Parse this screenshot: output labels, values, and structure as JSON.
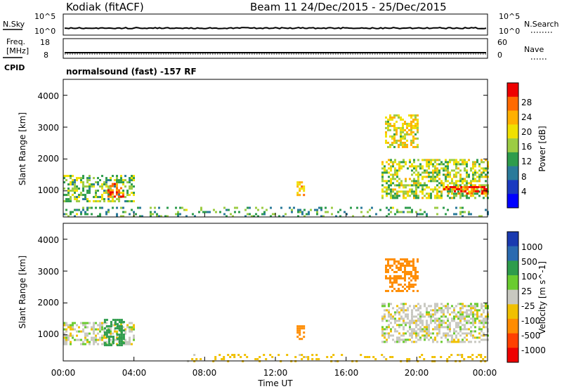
{
  "header": {
    "station": "Kodiak (fitACF)",
    "beam_period": "Beam 11  24/Dec/2015 - 25/Dec/2015"
  },
  "params": {
    "nsky_label": "N.Sky",
    "nsky_ticks": [
      "10^5",
      "10^0"
    ],
    "nsearch_label": "N.Search",
    "nsearch_ticks": [
      "10^5",
      "10^0"
    ],
    "freq_label_1": "Freq.",
    "freq_label_2": "[MHz]",
    "freq_ticks": [
      "18",
      "8"
    ],
    "nave_label": "Nave",
    "nave_ticks": [
      "60",
      "0"
    ],
    "cpid_label": "CPID",
    "cpid_text": "normalsound (fast) -157 RF"
  },
  "axes": {
    "ylabel": "Slant Range [km]",
    "yticks": [
      "4000",
      "3000",
      "2000",
      "1000"
    ],
    "xticks": [
      "00:00",
      "04:00",
      "08:00",
      "12:00",
      "16:00",
      "20:00",
      "00:00"
    ],
    "xlabel": "Time UT"
  },
  "power_scale": {
    "label": "Power [dB]",
    "ticks": [
      "28",
      "24",
      "20",
      "16",
      "12",
      "8",
      "4"
    ],
    "colors": [
      "#ee0000",
      "#ff6a00",
      "#ffb000",
      "#f0e000",
      "#9ccc44",
      "#2e9c4c",
      "#2a7a9a",
      "#1a3ac0",
      "#0000ff"
    ]
  },
  "velocity_scale": {
    "label": "Velocity [m s^-1]",
    "ticks": [
      "1000",
      "500",
      "100",
      "25",
      "-25",
      "-100",
      "-500",
      "-1000"
    ],
    "colors": [
      "#1a3ab0",
      "#2a6ab0",
      "#2e9c4c",
      "#6acc30",
      "#c8c8c0",
      "#f0c000",
      "#ff8c00",
      "#ff4000",
      "#ee0000"
    ]
  },
  "chart_data": {
    "type": "heatmap",
    "title": "Kodiak (fitACF) Beam 11 24/Dec/2015 - 25/Dec/2015",
    "xlabel": "Time UT",
    "ylabel": "Slant Range [km]",
    "xlim": [
      0,
      24
    ],
    "ylim": [
      180,
      4500
    ],
    "panels": [
      {
        "name": "Power [dB]",
        "zlim": [
          0,
          30
        ],
        "regions": [
          {
            "t": [
              0.0,
              4.0
            ],
            "r": [
              700,
              1500
            ],
            "value": 14
          },
          {
            "t": [
              2.5,
              3.4
            ],
            "r": [
              800,
              1250
            ],
            "value": 26
          },
          {
            "t": [
              0.0,
              24.0
            ],
            "r": [
              200,
              500
            ],
            "value": 12
          },
          {
            "t": [
              13.2,
              13.6
            ],
            "r": [
              900,
              1300
            ],
            "value": 22
          },
          {
            "t": [
              18.0,
              24.0
            ],
            "r": [
              800,
              2000
            ],
            "value": 16
          },
          {
            "t": [
              21.5,
              24.0
            ],
            "r": [
              900,
              1150
            ],
            "value": 26
          },
          {
            "t": [
              18.2,
              20.0
            ],
            "r": [
              2400,
              3400
            ],
            "value": 18
          }
        ]
      },
      {
        "name": "Velocity [m s^-1]",
        "zlim": [
          -1000,
          1000
        ],
        "regions": [
          {
            "t": [
              0.0,
              4.0
            ],
            "r": [
              700,
              1400
            ],
            "value": 0
          },
          {
            "t": [
              2.3,
              3.4
            ],
            "r": [
              700,
              1500
            ],
            "value": 150
          },
          {
            "t": [
              13.2,
              13.6
            ],
            "r": [
              900,
              1300
            ],
            "value": -300
          },
          {
            "t": [
              7.0,
              24.0
            ],
            "r": [
              200,
              400
            ],
            "value": -60
          },
          {
            "t": [
              18.0,
              24.0
            ],
            "r": [
              800,
              2000
            ],
            "value": 0
          },
          {
            "t": [
              18.2,
              20.0
            ],
            "r": [
              2400,
              3400
            ],
            "value": -300
          }
        ]
      }
    ]
  }
}
